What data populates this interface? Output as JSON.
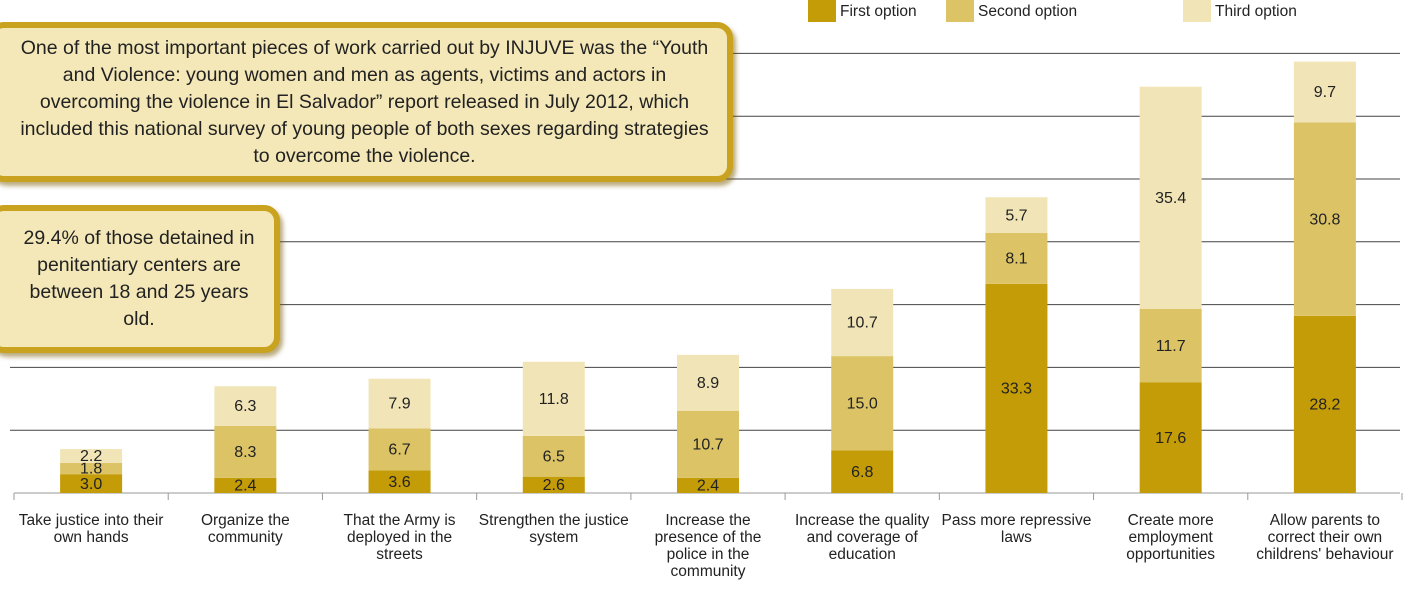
{
  "chart_data": {
    "type": "stacked_bar",
    "annotations": [
      "One of the most important pieces of work carried out by INJUVE was the “Youth and Violence: young women and men as agents, victims and actors in overcoming the violence in El Salvador” report released in July 2012, which included this national survey of young people of both sexes regarding strategies to overcome the violence.",
      "29.4% of those detained in penitentiary centers are between 18 and 25 years old."
    ],
    "categories": [
      "Take justice into their own hands",
      "Organize the community",
      "That the Army is deployed in the streets",
      "Strengthen the justice system",
      "Increase the presence of the police in the community",
      "Increase the quality and coverage of education",
      "Pass more repressive laws",
      "Create more employment opportunities",
      "Allow parents to correct their own childrens' behaviour"
    ],
    "series": [
      {
        "name": "First option",
        "color": "#c49c08",
        "values": [
          3.0,
          2.4,
          3.6,
          2.6,
          2.4,
          6.8,
          33.3,
          17.6,
          28.2
        ],
        "value_labels": [
          "3.0",
          "2.4",
          "3.6",
          "2.6",
          "2.4",
          "6.8",
          "33.3",
          "17.6",
          "28.2"
        ]
      },
      {
        "name": "Second option",
        "color": "#dcc466",
        "values": [
          1.8,
          8.3,
          6.7,
          6.5,
          10.7,
          15.0,
          8.1,
          11.7,
          30.8
        ],
        "value_labels": [
          "1.8",
          "8.3",
          "6.7",
          "6.5",
          "10.7",
          "15.0",
          "8.1",
          "11.7",
          "30.8"
        ]
      },
      {
        "name": "Third option",
        "color": "#f1e5b8",
        "values": [
          2.2,
          6.3,
          7.9,
          11.8,
          8.9,
          10.7,
          5.7,
          35.4,
          9.7
        ],
        "value_labels": [
          "2.2",
          "6.3",
          "7.9",
          "11.8",
          "8.9",
          "10.7",
          "5.7",
          "35.4",
          "9.7"
        ]
      }
    ],
    "ylim": [
      0,
      75
    ],
    "yticks": [
      0,
      10,
      20,
      30,
      40,
      50,
      60,
      70
    ],
    "grid": true
  }
}
